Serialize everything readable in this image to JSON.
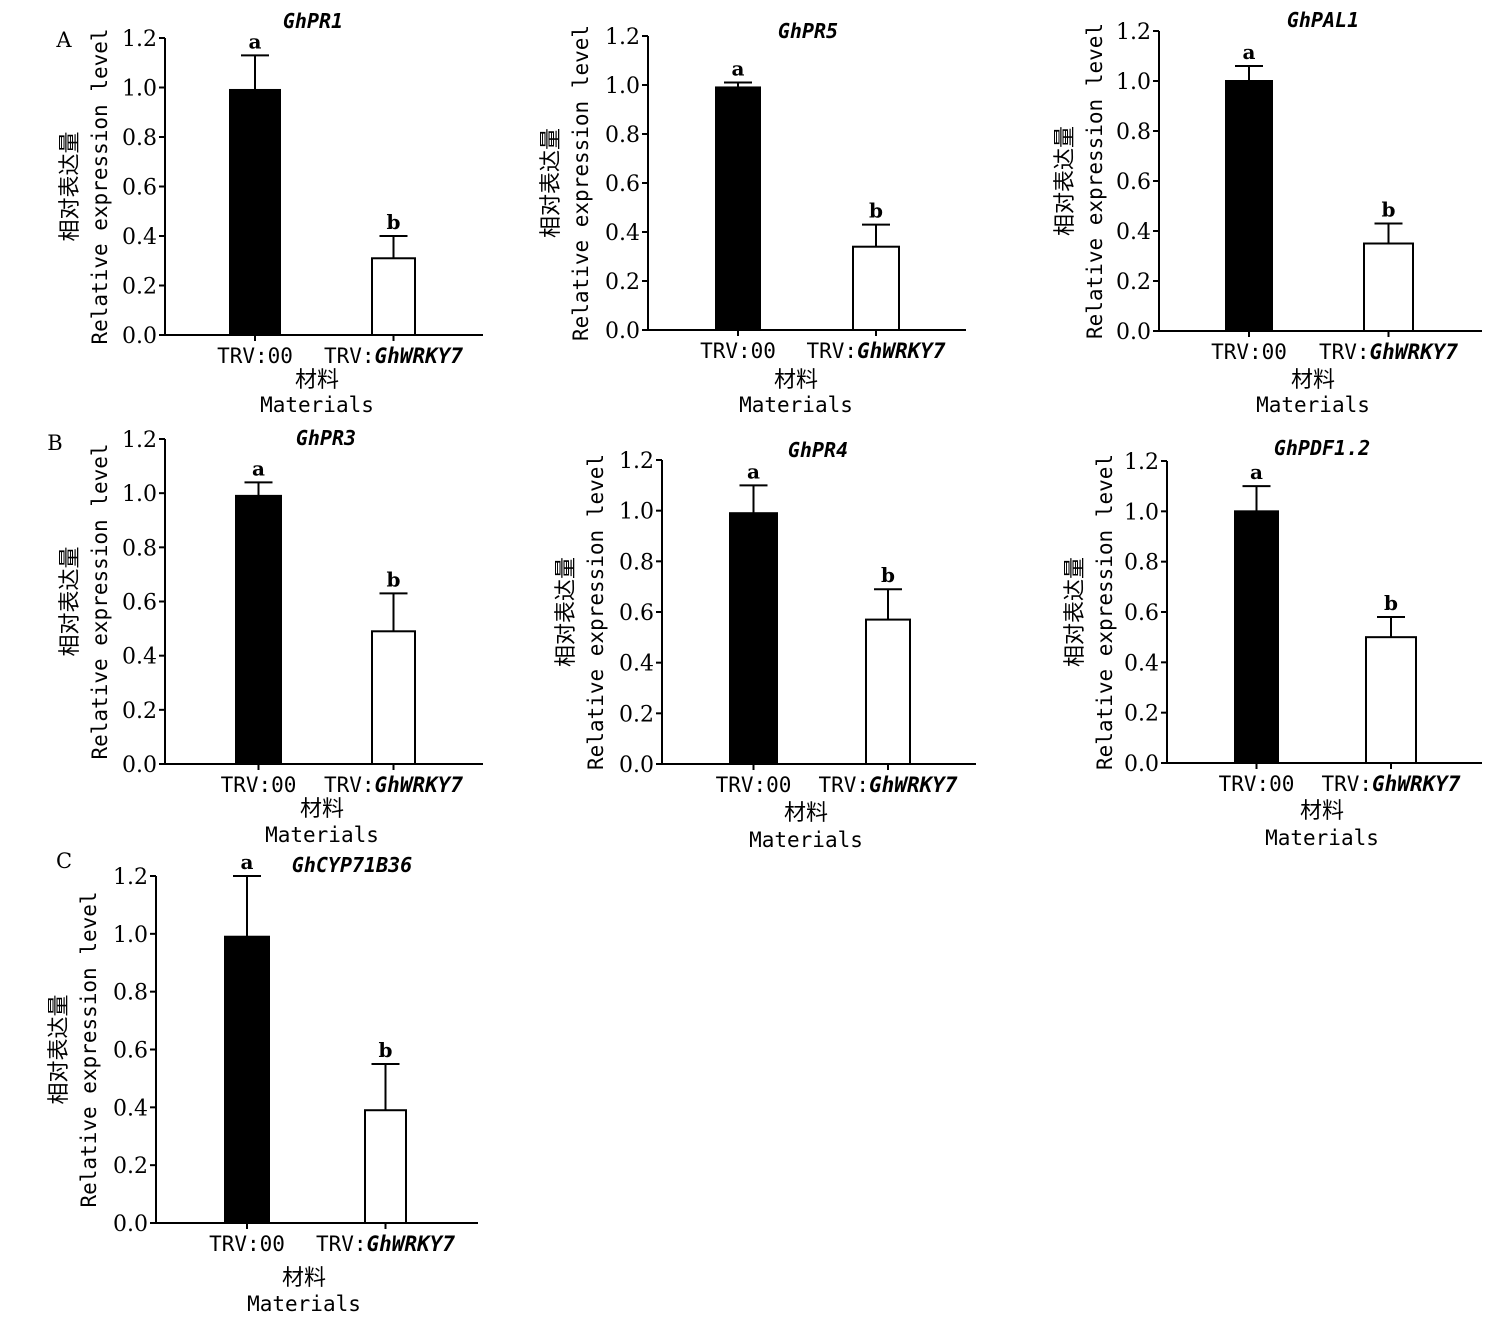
{
  "chart_data": [
    {
      "type": "bar",
      "panel_letter": "A",
      "title": "GhPR1",
      "categories": [
        "TRV:00",
        "TRV:GhWRKY7"
      ],
      "category_parts": [
        [
          "TRV:00",
          ""
        ],
        [
          "TRV:",
          "GhWRKY7"
        ]
      ],
      "values": [
        0.99,
        0.31
      ],
      "error_upper": [
        1.13,
        0.4
      ],
      "significance": [
        "a",
        "b"
      ],
      "fill_colors": [
        "#000000",
        "#ffffff"
      ],
      "ylabel_cn": "相对表达量",
      "ylabel_en": "Relative expression level",
      "xlabel_cn": "材料",
      "xlabel_en": "Materials",
      "ylim": [
        0,
        1.2
      ],
      "yticks": [
        "0.0",
        "0.2",
        "0.4",
        "0.6",
        "0.8",
        "1.0",
        "1.2"
      ],
      "grid": false
    },
    {
      "type": "bar",
      "panel_letter": "",
      "title": "GhPR5",
      "categories": [
        "TRV:00",
        "TRV:GhWRKY7"
      ],
      "category_parts": [
        [
          "TRV:00",
          ""
        ],
        [
          "TRV:",
          "GhWRKY7"
        ]
      ],
      "values": [
        0.99,
        0.34
      ],
      "error_upper": [
        1.01,
        0.43
      ],
      "significance": [
        "a",
        "b"
      ],
      "fill_colors": [
        "#000000",
        "#ffffff"
      ],
      "ylabel_cn": "相对表达量",
      "ylabel_en": "Relative expression level",
      "xlabel_cn": "材料",
      "xlabel_en": "Materials",
      "ylim": [
        0,
        1.2
      ],
      "yticks": [
        "0.0",
        "0.2",
        "0.4",
        "0.6",
        "0.8",
        "1.0",
        "1.2"
      ],
      "grid": false
    },
    {
      "type": "bar",
      "panel_letter": "",
      "title": "GhPAL1",
      "categories": [
        "TRV:00",
        "TRV:GhWRKY7"
      ],
      "category_parts": [
        [
          "TRV:00",
          ""
        ],
        [
          "TRV:",
          "GhWRKY7"
        ]
      ],
      "values": [
        1.0,
        0.35
      ],
      "error_upper": [
        1.06,
        0.43
      ],
      "significance": [
        "a",
        "b"
      ],
      "fill_colors": [
        "#000000",
        "#ffffff"
      ],
      "ylabel_cn": "相对表达量",
      "ylabel_en": "Relative expression level",
      "xlabel_cn": "材料",
      "xlabel_en": "Materials",
      "ylim": [
        0,
        1.2
      ],
      "yticks": [
        "0.0",
        "0.2",
        "0.4",
        "0.6",
        "0.8",
        "1.0",
        "1.2"
      ],
      "grid": false
    },
    {
      "type": "bar",
      "panel_letter": "B",
      "title": "GhPR3",
      "categories": [
        "TRV:00",
        "TRV:GhWRKY7"
      ],
      "category_parts": [
        [
          "TRV:00",
          ""
        ],
        [
          "TRV:",
          "GhWRKY7"
        ]
      ],
      "values": [
        0.99,
        0.49
      ],
      "error_upper": [
        1.04,
        0.63
      ],
      "significance": [
        "a",
        "b"
      ],
      "fill_colors": [
        "#000000",
        "#ffffff"
      ],
      "ylabel_cn": "相对表达量",
      "ylabel_en": "Relative expression level",
      "xlabel_cn": "材料",
      "xlabel_en": "Materials",
      "ylim": [
        0,
        1.2
      ],
      "yticks": [
        "0.0",
        "0.2",
        "0.4",
        "0.6",
        "0.8",
        "1.0",
        "1.2"
      ],
      "grid": false
    },
    {
      "type": "bar",
      "panel_letter": "",
      "title": "GhPR4",
      "categories": [
        "TRV:00",
        "TRV:GhWRKY7"
      ],
      "category_parts": [
        [
          "TRV:00",
          ""
        ],
        [
          "TRV:",
          "GhWRKY7"
        ]
      ],
      "values": [
        0.99,
        0.57
      ],
      "error_upper": [
        1.1,
        0.69
      ],
      "significance": [
        "a",
        "b"
      ],
      "fill_colors": [
        "#000000",
        "#ffffff"
      ],
      "ylabel_cn": "相对表达量",
      "ylabel_en": "Relative expression level",
      "xlabel_cn": "材料",
      "xlabel_en": "Materials",
      "ylim": [
        0,
        1.2
      ],
      "yticks": [
        "0.0",
        "0.2",
        "0.4",
        "0.6",
        "0.8",
        "1.0",
        "1.2"
      ],
      "grid": false
    },
    {
      "type": "bar",
      "panel_letter": "",
      "title": "GhPDF1.2",
      "categories": [
        "TRV:00",
        "TRV:GhWRKY7"
      ],
      "category_parts": [
        [
          "TRV:00",
          ""
        ],
        [
          "TRV:",
          "GhWRKY7"
        ]
      ],
      "values": [
        1.0,
        0.5
      ],
      "error_upper": [
        1.1,
        0.58
      ],
      "significance": [
        "a",
        "b"
      ],
      "fill_colors": [
        "#000000",
        "#ffffff"
      ],
      "ylabel_cn": "相对表达量",
      "ylabel_en": "Relative expression level",
      "xlabel_cn": "材料",
      "xlabel_en": "Materials",
      "ylim": [
        0,
        1.2
      ],
      "yticks": [
        "0.0",
        "0.2",
        "0.4",
        "0.6",
        "0.8",
        "1.0",
        "1.2"
      ],
      "grid": false
    },
    {
      "type": "bar",
      "panel_letter": "C",
      "title": "GhCYP71B36",
      "categories": [
        "TRV:00",
        "TRV:GhWRKY7"
      ],
      "category_parts": [
        [
          "TRV:00",
          ""
        ],
        [
          "TRV:",
          "GhWRKY7"
        ]
      ],
      "values": [
        0.99,
        0.39
      ],
      "error_upper": [
        1.2,
        0.55
      ],
      "significance": [
        "a",
        "b"
      ],
      "fill_colors": [
        "#000000",
        "#ffffff"
      ],
      "ylabel_cn": "相对表达量",
      "ylabel_en": "Relative expression level",
      "xlabel_cn": "材料",
      "xlabel_en": "Materials",
      "ylim": [
        0,
        1.2
      ],
      "yticks": [
        "0.0",
        "0.2",
        "0.4",
        "0.6",
        "0.8",
        "1.0",
        "1.2"
      ],
      "grid": false
    }
  ]
}
